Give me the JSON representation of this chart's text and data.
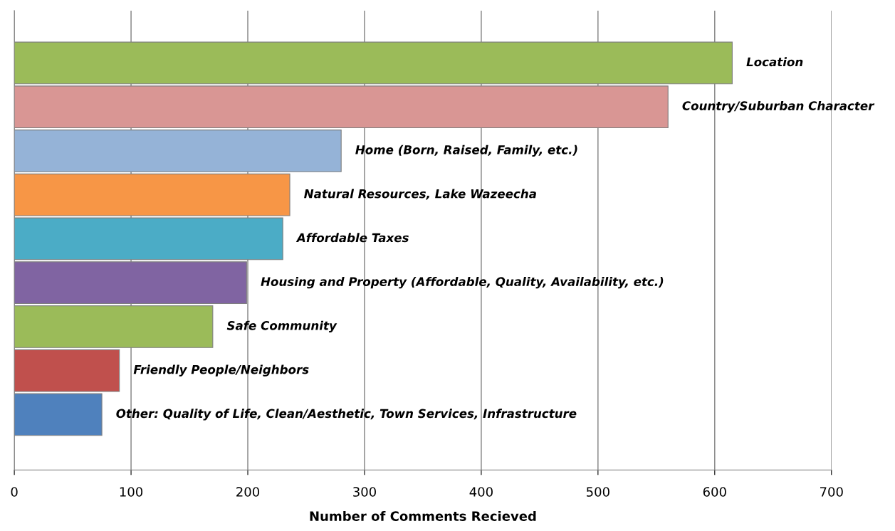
{
  "chart_data": {
    "type": "bar",
    "orientation": "horizontal",
    "xlabel": "Number of Comments Recieved",
    "categories": [
      "Location",
      "Country/Suburban Character",
      "Home (Born, Raised, Family, etc.)",
      "Natural Resources, Lake Wazeecha",
      "Affordable Taxes",
      "Housing and Property (Affordable, Quality, Availability, etc.)",
      "Safe Community",
      "Friendly People/Neighbors",
      "Other: Quality of Life, Clean/Aesthetic, Town Services, Infrastructure"
    ],
    "values": [
      615,
      560,
      280,
      236,
      230,
      199,
      170,
      90,
      75
    ],
    "colors": [
      "#9bbb59",
      "#d99694",
      "#95b3d7",
      "#f79646",
      "#4bacc6",
      "#8064a2",
      "#9bbb59",
      "#c0504d",
      "#4f81bd"
    ],
    "xlim": [
      0,
      700
    ],
    "xticks": [
      0,
      100,
      200,
      300,
      400,
      500,
      600,
      700
    ],
    "grid": "x",
    "tick_labels": "x"
  }
}
